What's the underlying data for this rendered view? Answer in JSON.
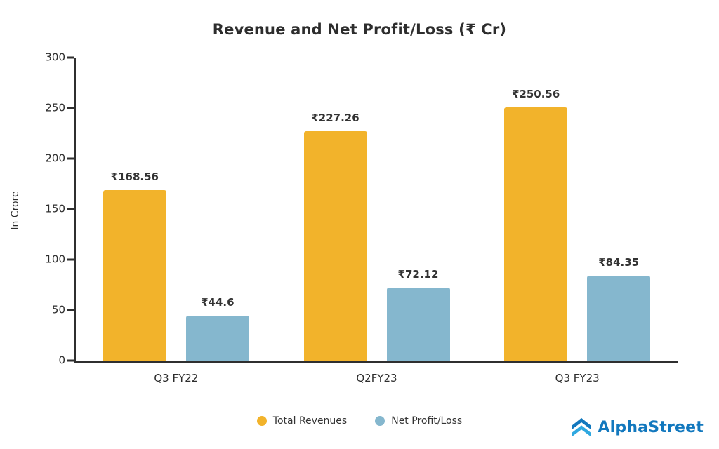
{
  "title": "Revenue and Net Profit/Loss (₹ Cr)",
  "chart_data": {
    "type": "bar",
    "title": "Revenue and Net Profit/Loss (₹ Cr)",
    "xlabel": "",
    "ylabel": "In Crore",
    "ylim": [
      0,
      300
    ],
    "yticks": [
      0,
      50,
      100,
      150,
      200,
      250,
      300
    ],
    "grid": false,
    "legend_position": "bottom",
    "categories": [
      "Q3 FY22",
      "Q2FY23",
      "Q3 FY23"
    ],
    "series": [
      {
        "name": "Total Revenues",
        "color": "#F2B32B",
        "values": [
          168.56,
          227.26,
          250.56
        ],
        "labels": [
          "₹168.56",
          "₹227.26",
          "₹250.56"
        ]
      },
      {
        "name": "Net Profit/Loss",
        "color": "#85B7CE",
        "values": [
          44.6,
          72.12,
          84.35
        ],
        "labels": [
          "₹44.6",
          "₹72.12",
          "₹84.35"
        ]
      }
    ]
  },
  "legend": {
    "items": [
      {
        "label": "Total Revenues",
        "color": "#F2B32B"
      },
      {
        "label": "Net Profit/Loss",
        "color": "#85B7CE"
      }
    ]
  },
  "branding": {
    "name": "AlphaStreet",
    "color": "#1278BE",
    "icon_color_top": "#1278BE",
    "icon_color_bottom": "#2FA8E0"
  },
  "axis": {
    "color": "#2F2F2F"
  }
}
